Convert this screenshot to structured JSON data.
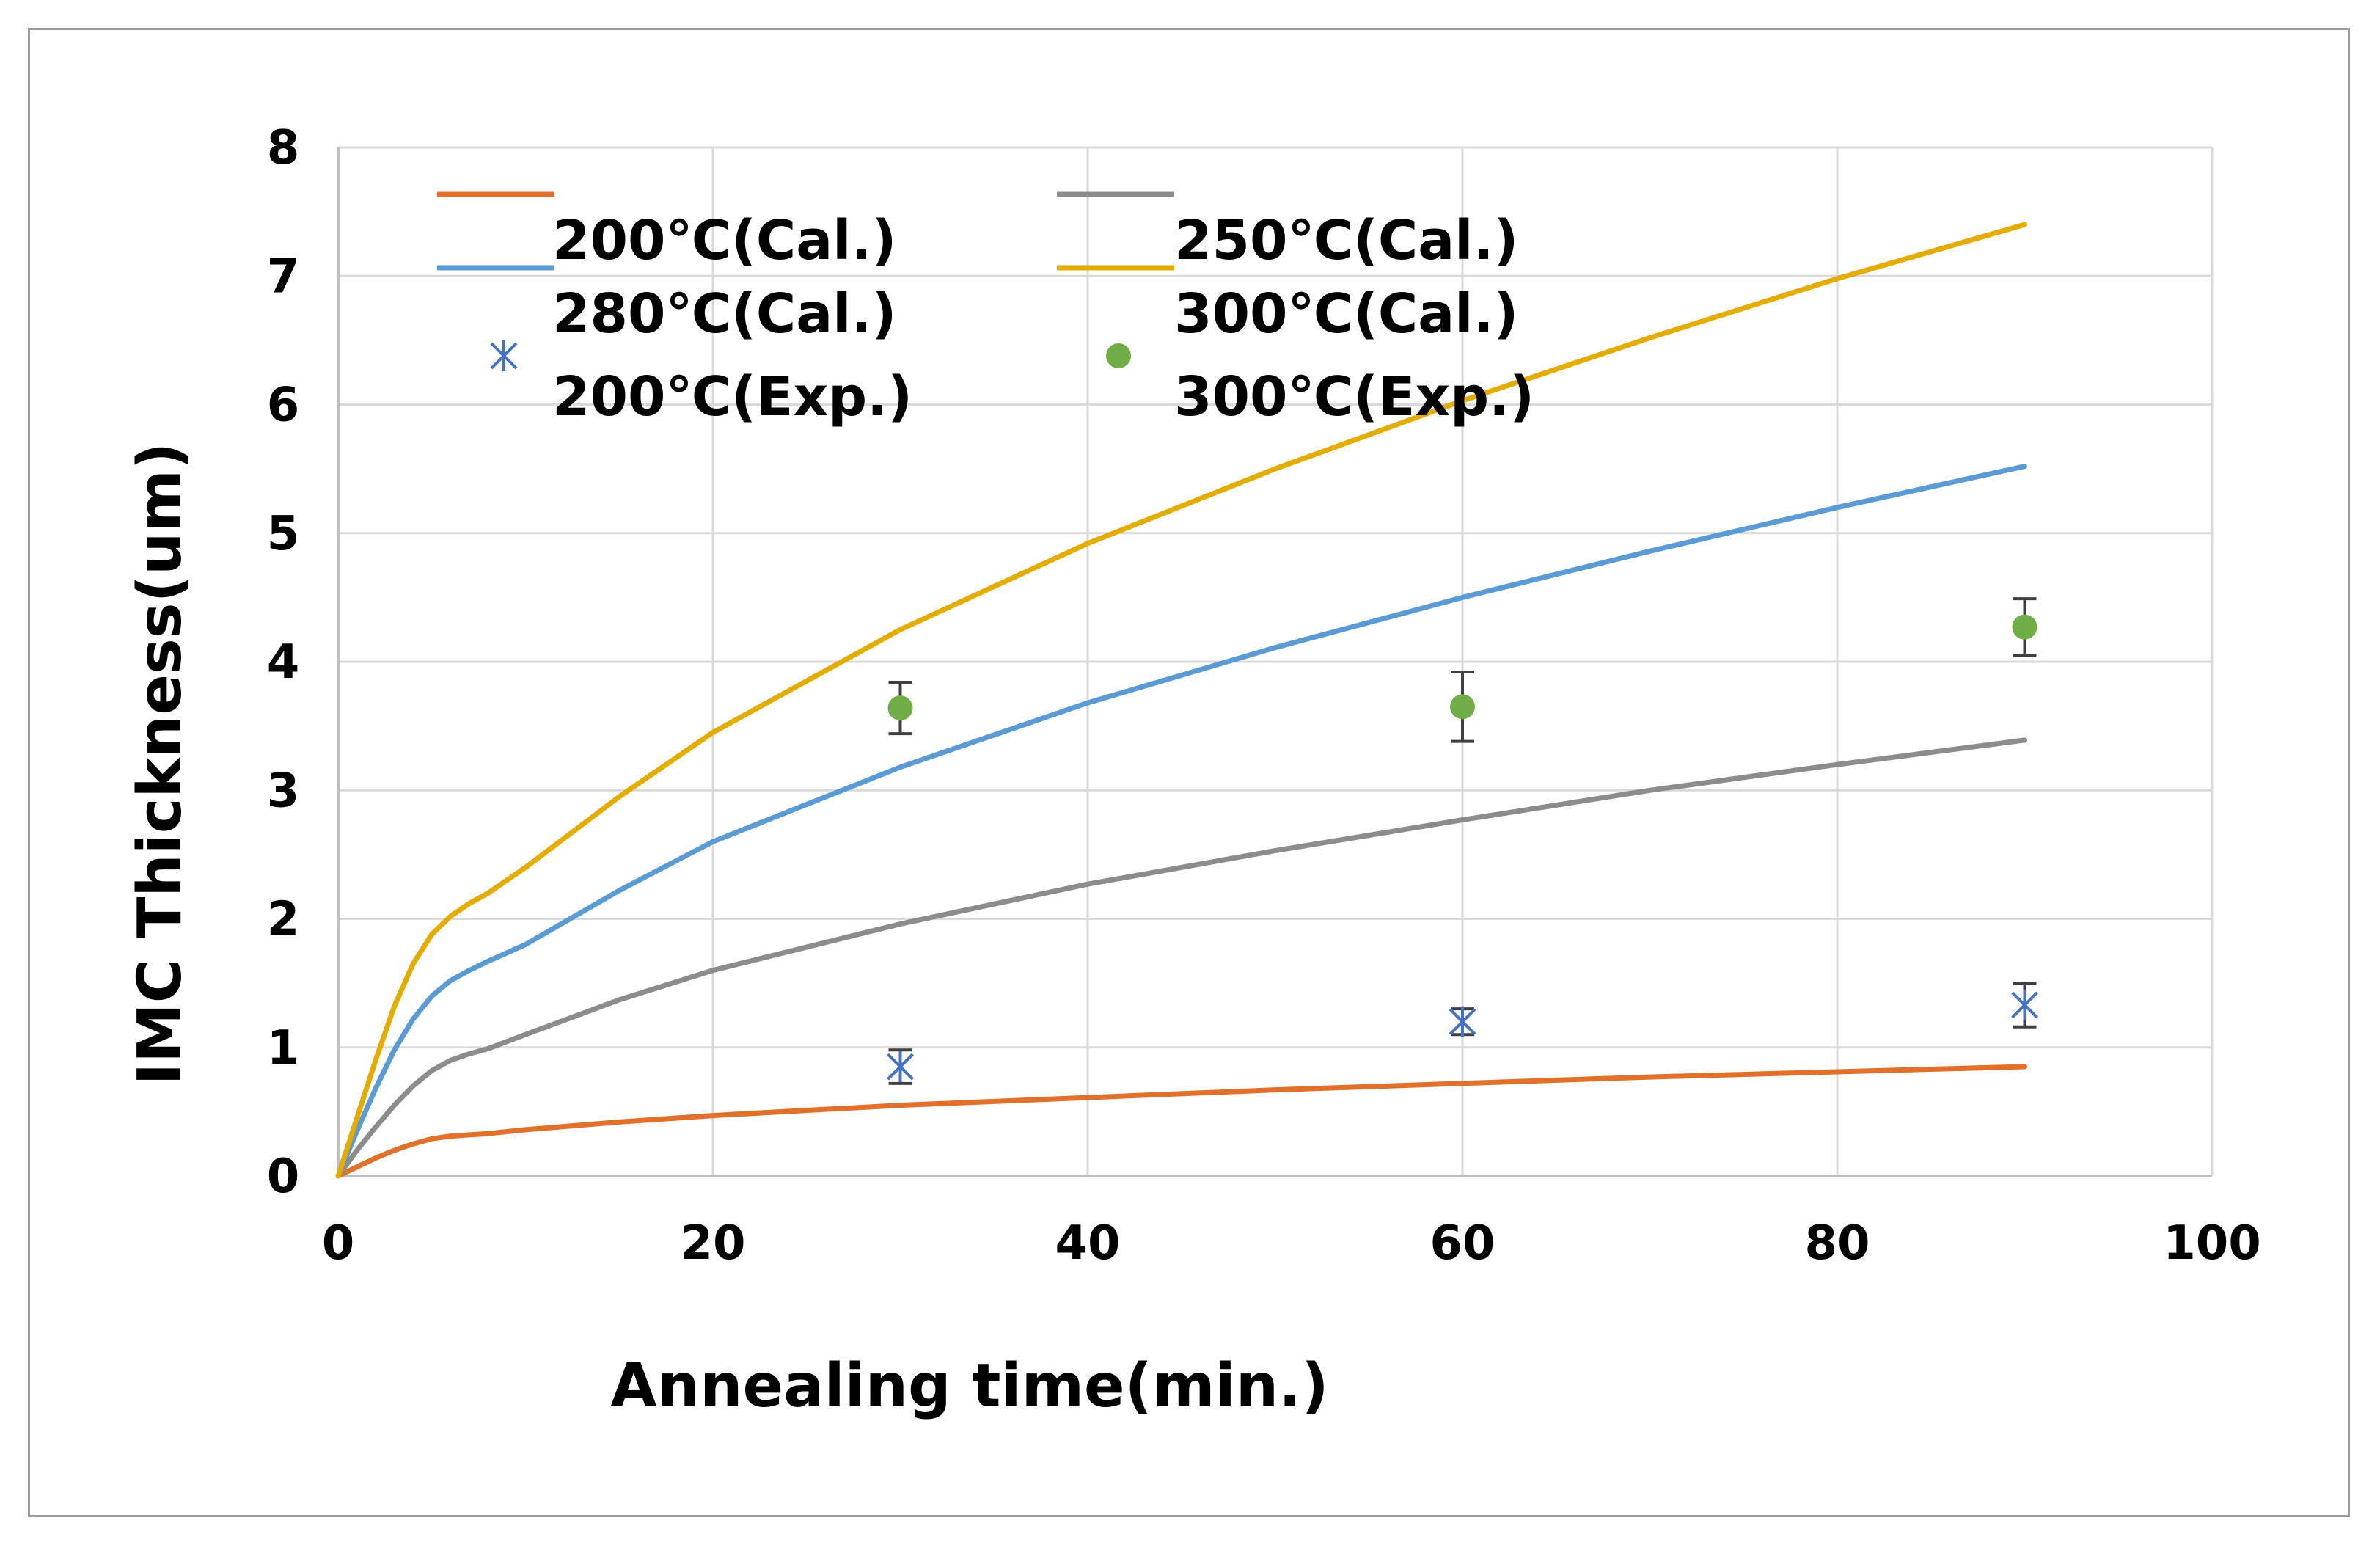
{
  "chart_data": {
    "type": "line",
    "title": "",
    "xlabel": "Annealing time(min.)",
    "ylabel": "IMC Thickness(um)",
    "xlim": [
      0,
      100
    ],
    "ylim": [
      0,
      8
    ],
    "xticks": [
      0,
      20,
      40,
      60,
      80,
      100
    ],
    "yticks": [
      0,
      1,
      2,
      3,
      4,
      5,
      6,
      7,
      8
    ],
    "grid": true,
    "legend_position": "top-left",
    "series": [
      {
        "name": "200℃(Cal.)",
        "kind": "line",
        "color": "#E0702A",
        "x": [
          0,
          1,
          2,
          3,
          4,
          5,
          6,
          7,
          8,
          10,
          15,
          20,
          30,
          40,
          50,
          60,
          70,
          80,
          90
        ],
        "y": [
          0,
          0.07,
          0.14,
          0.2,
          0.25,
          0.29,
          0.31,
          0.32,
          0.33,
          0.36,
          0.42,
          0.47,
          0.55,
          0.61,
          0.67,
          0.72,
          0.77,
          0.81,
          0.85
        ]
      },
      {
        "name": "250℃(Cal.)",
        "kind": "line",
        "color": "#8C8C8C",
        "x": [
          0,
          1,
          2,
          3,
          4,
          5,
          6,
          7,
          8,
          10,
          15,
          20,
          30,
          40,
          50,
          60,
          70,
          80,
          90
        ],
        "y": [
          0,
          0.2,
          0.38,
          0.55,
          0.7,
          0.82,
          0.9,
          0.95,
          0.99,
          1.1,
          1.37,
          1.6,
          1.96,
          2.27,
          2.53,
          2.77,
          3.0,
          3.2,
          3.39
        ]
      },
      {
        "name": "280℃(Cal.)",
        "kind": "line",
        "color": "#5B9BD5",
        "x": [
          0,
          1,
          2,
          3,
          4,
          5,
          6,
          7,
          8,
          10,
          15,
          20,
          30,
          40,
          50,
          60,
          70,
          80,
          90
        ],
        "y": [
          0,
          0.35,
          0.68,
          0.98,
          1.22,
          1.4,
          1.52,
          1.6,
          1.67,
          1.8,
          2.22,
          2.6,
          3.18,
          3.68,
          4.11,
          4.5,
          4.86,
          5.2,
          5.52
        ]
      },
      {
        "name": "300℃(Cal.)",
        "kind": "line",
        "color": "#E5AC00",
        "x": [
          0,
          1,
          2,
          3,
          4,
          5,
          6,
          7,
          8,
          10,
          15,
          20,
          30,
          40,
          50,
          60,
          70,
          80,
          90
        ],
        "y": [
          0,
          0.45,
          0.9,
          1.32,
          1.65,
          1.88,
          2.02,
          2.12,
          2.2,
          2.4,
          2.95,
          3.45,
          4.25,
          4.92,
          5.5,
          6.03,
          6.52,
          6.98,
          7.4
        ]
      },
      {
        "name": "200℃(Exp.)",
        "kind": "scatter",
        "marker": "asterisk",
        "color": "#4472C4",
        "x": [
          30,
          60,
          90
        ],
        "y": [
          0.85,
          1.2,
          1.33
        ],
        "err": [
          0.13,
          0.1,
          0.17
        ]
      },
      {
        "name": "300℃(Exp.)",
        "kind": "scatter",
        "marker": "circle",
        "color": "#70AD47",
        "x": [
          30,
          60,
          90
        ],
        "y": [
          3.64,
          3.65,
          4.27
        ],
        "err": [
          0.2,
          0.27,
          0.22
        ]
      }
    ]
  }
}
